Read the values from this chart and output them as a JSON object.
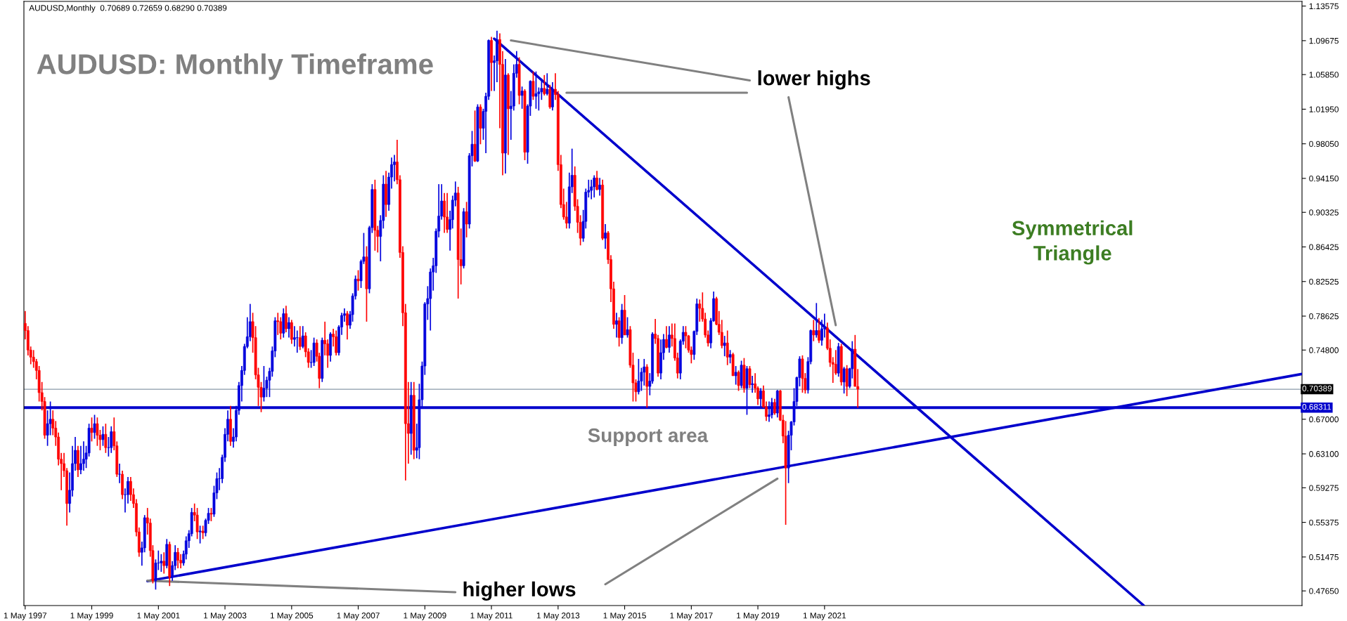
{
  "chart_data": {
    "type": "candlestick",
    "title": "AUDUSD: Monthly Timeframe",
    "subtitle": "AUDUSD,Monthly  0.70689 0.72659 0.68290 0.70389",
    "annotations": [
      "lower highs",
      "higher lows",
      "Support area",
      "Symmetrical\nTriangle"
    ],
    "colors": [
      "#ff0000",
      "#ff0000",
      "#ff0000",
      "#ff0000",
      "#ff0000",
      "#ff0000",
      "#ff0000",
      "#ff0000",
      "#0000dd",
      "#0000dd",
      "#ff0000",
      "#ff0000",
      "#ff0000",
      "#ff0000",
      "#ff0000",
      "#ff0000",
      "#0000dd",
      "#0000dd",
      "#0000dd",
      "#ff0000",
      "#0000dd",
      "#0000dd",
      "#0000dd",
      "#0000dd",
      "#ff0000",
      "#0000dd",
      "#ff0000",
      "#ff0000",
      "#0000dd",
      "#ff0000",
      "#0000dd",
      "#0000dd",
      "#ff0000",
      "#ff0000",
      "#0000dd",
      "#ff0000",
      "#0000dd",
      "#0000dd",
      "#ff0000",
      "#ff0000",
      "#ff0000",
      "#ff0000",
      "#0000dd",
      "#0000dd",
      "#ff0000",
      "#ff0000",
      "#ff0000",
      "#0000dd",
      "#0000dd",
      "#0000dd",
      "#ff0000",
      "#0000dd",
      "#ff0000",
      "#0000dd",
      "#0000dd",
      "#ff0000",
      "#ff0000",
      "#0000dd",
      "#0000dd",
      "#0000dd",
      "#0000dd",
      "#ff0000",
      "#ff0000",
      "#0000dd",
      "#ff0000",
      "#0000dd",
      "#0000dd",
      "#ff0000",
      "#0000dd",
      "#0000dd",
      "#0000dd",
      "#0000dd",
      "#0000dd",
      "#0000dd",
      "#ff0000",
      "#0000dd",
      "#0000dd",
      "#0000dd",
      "#0000dd",
      "#0000dd",
      "#0000dd",
      "#0000dd",
      "#ff0000",
      "#ff0000",
      "#ff0000",
      "#ff0000",
      "#0000dd",
      "#0000dd",
      "#0000dd",
      "#0000dd",
      "#0000dd",
      "#ff0000",
      "#ff0000",
      "#0000dd",
      "#ff0000",
      "#0000dd",
      "#ff0000",
      "#0000dd",
      "#0000dd",
      "#ff0000",
      "#0000dd",
      "#ff0000",
      "#ff0000",
      "#0000dd",
      "#0000dd",
      "#ff0000",
      "#ff0000",
      "#0000dd",
      "#ff0000",
      "#ff0000",
      "#0000dd",
      "#ff0000",
      "#ff0000",
      "#0000dd",
      "#0000dd",
      "#0000dd",
      "#ff0000",
      "#0000dd",
      "#0000dd",
      "#0000dd",
      "#ff0000",
      "#0000dd",
      "#0000dd",
      "#ff0000",
      "#0000dd",
      "#0000dd",
      "#ff0000",
      "#ff0000",
      "#0000dd",
      "#0000dd",
      "#ff0000",
      "#0000dd",
      "#0000dd",
      "#0000dd",
      "#ff0000",
      "#ff0000",
      "#ff0000",
      "#ff0000",
      "#ff0000",
      "#0000dd",
      "#ff0000",
      "#0000dd",
      "#0000dd",
      "#0000dd",
      "#0000dd",
      "#0000dd",
      "#0000dd",
      "#0000dd",
      "#0000dd",
      "#0000dd",
      "#0000dd",
      "#ff0000",
      "#ff0000",
      "#0000dd",
      "#0000dd",
      "#0000dd",
      "#ff0000",
      "#ff0000",
      "#0000dd",
      "#ff0000",
      "#0000dd",
      "#0000dd",
      "#ff0000",
      "#0000dd",
      "#ff0000",
      "#0000dd",
      "#0000dd",
      "#0000dd",
      "#ff0000",
      "#0000dd",
      "#0000dd",
      "#ff0000",
      "#ff0000",
      "#0000dd",
      "#ff0000",
      "#0000dd",
      "#0000dd",
      "#0000dd",
      "#ff0000",
      "#0000dd",
      "#ff0000",
      "#0000dd",
      "#0000dd",
      "#ff0000",
      "#0000dd",
      "#0000dd",
      "#0000dd",
      "#ff0000",
      "#0000dd",
      "#ff0000",
      "#0000dd",
      "#ff0000",
      "#ff0000",
      "#ff0000",
      "#ff0000",
      "#ff0000",
      "#0000dd",
      "#0000dd",
      "#ff0000",
      "#ff0000",
      "#ff0000",
      "#0000dd",
      "#0000dd",
      "#0000dd",
      "#0000dd",
      "#0000dd",
      "#ff0000",
      "#0000dd",
      "#ff0000",
      "#0000dd",
      "#ff0000",
      "#ff0000",
      "#ff0000",
      "#0000dd",
      "#ff0000",
      "#0000dd",
      "#ff0000",
      "#0000dd",
      "#ff0000",
      "#ff0000",
      "#ff0000",
      "#0000dd",
      "#0000dd",
      "#0000dd",
      "#ff0000",
      "#0000dd",
      "#0000dd",
      "#ff0000",
      "#ff0000",
      "#0000dd",
      "#0000dd",
      "#ff0000",
      "#0000dd",
      "#ff0000",
      "#ff0000",
      "#ff0000",
      "#0000dd",
      "#0000dd",
      "#ff0000",
      "#ff0000",
      "#ff0000",
      "#0000dd",
      "#0000dd",
      "#ff0000",
      "#ff0000",
      "#ff0000",
      "#ff0000",
      "#0000dd",
      "#0000dd",
      "#ff0000",
      "#ff0000",
      "#ff0000",
      "#0000dd",
      "#ff0000",
      "#0000dd",
      "#ff0000",
      "#0000dd",
      "#ff0000",
      "#0000dd",
      "#ff0000",
      "#0000dd",
      "#ff0000",
      "#0000dd",
      "#ff0000",
      "#ff0000",
      "#0000dd",
      "#ff0000",
      "#ff0000",
      "#0000dd",
      "#0000dd",
      "#ff0000",
      "#0000dd",
      "#ff0000",
      "#ff0000",
      "#ff0000",
      "#0000dd",
      "#0000dd",
      "#0000dd",
      "#0000dd",
      "#0000dd",
      "#ff0000",
      "#ff0000",
      "#0000dd",
      "#0000dd",
      "#ff0000",
      "#0000dd",
      "#ff0000",
      "#0000dd",
      "#0000dd",
      "#ff0000",
      "#ff0000",
      "#ff0000",
      "#ff0000",
      "#0000dd",
      "#ff0000",
      "#0000dd",
      "#ff0000",
      "#0000dd",
      "#0000dd",
      "#ff0000",
      "#ff0000"
    ],
    "xlim": [
      "1997-04-17",
      "2035-09-01"
    ],
    "ylim": [
      0.46,
      1.141
    ],
    "xticks": [
      {
        "value": "1997-05-01",
        "label": "1 May 1997"
      },
      {
        "value": "1999-05-01",
        "label": "1 May 1999"
      },
      {
        "value": "2001-05-01",
        "label": "1 May 2001"
      },
      {
        "value": "2003-05-01",
        "label": "1 May 2003"
      },
      {
        "value": "2005-05-01",
        "label": "1 May 2005"
      },
      {
        "value": "2007-05-01",
        "label": "1 May 2007"
      },
      {
        "value": "2009-05-01",
        "label": "1 May 2009"
      },
      {
        "value": "2011-05-01",
        "label": "1 May 2011"
      },
      {
        "value": "2013-05-01",
        "label": "1 May 2013"
      },
      {
        "value": "2015-05-01",
        "label": "1 May 2015"
      },
      {
        "value": "2017-05-01",
        "label": "1 May 2017"
      },
      {
        "value": "2019-05-01",
        "label": "1 May 2019"
      },
      {
        "value": "2021-05-01",
        "label": "1 May 2021"
      }
    ],
    "yticks": [
      {
        "value": 1.13575,
        "label": "1.13575"
      },
      {
        "value": 1.09675,
        "label": "1.09675"
      },
      {
        "value": 1.0585,
        "label": "1.05850"
      },
      {
        "value": 1.0195,
        "label": "1.01950"
      },
      {
        "value": 0.9805,
        "label": "0.98050"
      },
      {
        "value": 0.9415,
        "label": "0.94150"
      },
      {
        "value": 0.90325,
        "label": "0.90325"
      },
      {
        "value": 0.86425,
        "label": "0.86425"
      },
      {
        "value": 0.82525,
        "label": "0.82525"
      },
      {
        "value": 0.78625,
        "label": "0.78625"
      },
      {
        "value": 0.748,
        "label": "0.74800"
      },
      {
        "value": 0.67,
        "label": "0.67000"
      },
      {
        "value": 0.631,
        "label": "0.63100"
      },
      {
        "value": 0.59275,
        "label": "0.59275"
      },
      {
        "value": 0.55375,
        "label": "0.55375"
      },
      {
        "value": 0.51475,
        "label": "0.51475"
      },
      {
        "value": 0.4765,
        "label": "0.47650"
      }
    ],
    "ref_lines": [
      {
        "axis": "y",
        "value": 0.70389,
        "label": "0.70389",
        "color": "#8a9aa8"
      },
      {
        "axis": "y",
        "value": 0.68311,
        "label": "0.68311",
        "color": "#0000cc"
      }
    ],
    "x": [
      "1997-05",
      "1997-06",
      "1997-07",
      "1997-08",
      "1997-09",
      "1997-10",
      "1997-11",
      "1997-12",
      "1998-01",
      "1998-02",
      "1998-03",
      "1998-04",
      "1998-05",
      "1998-06",
      "1998-07",
      "1998-08",
      "1998-09",
      "1998-10",
      "1998-11",
      "1998-12",
      "1999-01",
      "1999-02",
      "1999-03",
      "1999-04",
      "1999-05",
      "1999-06",
      "1999-07",
      "1999-08",
      "1999-09",
      "1999-10",
      "1999-11",
      "1999-12",
      "2000-01",
      "2000-02",
      "2000-03",
      "2000-04",
      "2000-05",
      "2000-06",
      "2000-07",
      "2000-08",
      "2000-09",
      "2000-10",
      "2000-11",
      "2000-12",
      "2001-01",
      "2001-02",
      "2001-03",
      "2001-04",
      "2001-05",
      "2001-06",
      "2001-07",
      "2001-08",
      "2001-09",
      "2001-10",
      "2001-11",
      "2001-12",
      "2002-01",
      "2002-02",
      "2002-03",
      "2002-04",
      "2002-05",
      "2002-06",
      "2002-07",
      "2002-08",
      "2002-09",
      "2002-10",
      "2002-11",
      "2002-12",
      "2003-01",
      "2003-02",
      "2003-03",
      "2003-04",
      "2003-05",
      "2003-06",
      "2003-07",
      "2003-08",
      "2003-09",
      "2003-10",
      "2003-11",
      "2003-12",
      "2004-01",
      "2004-02",
      "2004-03",
      "2004-04",
      "2004-05",
      "2004-06",
      "2004-07",
      "2004-08",
      "2004-09",
      "2004-10",
      "2004-11",
      "2004-12",
      "2005-01",
      "2005-02",
      "2005-03",
      "2005-04",
      "2005-05",
      "2005-06",
      "2005-07",
      "2005-08",
      "2005-09",
      "2005-10",
      "2005-11",
      "2005-12",
      "2006-01",
      "2006-02",
      "2006-03",
      "2006-04",
      "2006-05",
      "2006-06",
      "2006-07",
      "2006-08",
      "2006-09",
      "2006-10",
      "2006-11",
      "2006-12",
      "2007-01",
      "2007-02",
      "2007-03",
      "2007-04",
      "2007-05",
      "2007-06",
      "2007-07",
      "2007-08",
      "2007-09",
      "2007-10",
      "2007-11",
      "2007-12",
      "2008-01",
      "2008-02",
      "2008-03",
      "2008-04",
      "2008-05",
      "2008-06",
      "2008-07",
      "2008-08",
      "2008-09",
      "2008-10",
      "2008-11",
      "2008-12",
      "2009-01",
      "2009-02",
      "2009-03",
      "2009-04",
      "2009-05",
      "2009-06",
      "2009-07",
      "2009-08",
      "2009-09",
      "2009-10",
      "2009-11",
      "2009-12",
      "2010-01",
      "2010-02",
      "2010-03",
      "2010-04",
      "2010-05",
      "2010-06",
      "2010-07",
      "2010-08",
      "2010-09",
      "2010-10",
      "2010-11",
      "2010-12",
      "2011-01",
      "2011-02",
      "2011-03",
      "2011-04",
      "2011-05",
      "2011-06",
      "2011-07",
      "2011-08",
      "2011-09",
      "2011-10",
      "2011-11",
      "2011-12",
      "2012-01",
      "2012-02",
      "2012-03",
      "2012-04",
      "2012-05",
      "2012-06",
      "2012-07",
      "2012-08",
      "2012-09",
      "2012-10",
      "2012-11",
      "2012-12",
      "2013-01",
      "2013-02",
      "2013-03",
      "2013-04",
      "2013-05",
      "2013-06",
      "2013-07",
      "2013-08",
      "2013-09",
      "2013-10",
      "2013-11",
      "2013-12",
      "2014-01",
      "2014-02",
      "2014-03",
      "2014-04",
      "2014-05",
      "2014-06",
      "2014-07",
      "2014-08",
      "2014-09",
      "2014-10",
      "2014-11",
      "2014-12",
      "2015-01",
      "2015-02",
      "2015-03",
      "2015-04",
      "2015-05",
      "2015-06",
      "2015-07",
      "2015-08",
      "2015-09",
      "2015-10",
      "2015-11",
      "2015-12",
      "2016-01",
      "2016-02",
      "2016-03",
      "2016-04",
      "2016-05",
      "2016-06",
      "2016-07",
      "2016-08",
      "2016-09",
      "2016-10",
      "2016-11",
      "2016-12",
      "2017-01",
      "2017-02",
      "2017-03",
      "2017-04",
      "2017-05",
      "2017-06",
      "2017-07",
      "2017-08",
      "2017-09",
      "2017-10",
      "2017-11",
      "2017-12",
      "2018-01",
      "2018-02",
      "2018-03",
      "2018-04",
      "2018-05",
      "2018-06",
      "2018-07",
      "2018-08",
      "2018-09",
      "2018-10",
      "2018-11",
      "2018-12",
      "2019-01",
      "2019-02",
      "2019-03",
      "2019-04",
      "2019-05",
      "2019-06",
      "2019-07",
      "2019-08",
      "2019-09",
      "2019-10",
      "2019-11",
      "2019-12",
      "2020-01",
      "2020-02",
      "2020-03",
      "2020-04",
      "2020-05",
      "2020-06",
      "2020-07",
      "2020-08",
      "2020-09",
      "2020-10",
      "2020-11",
      "2020-12",
      "2021-01",
      "2021-02",
      "2021-03",
      "2021-04",
      "2021-05",
      "2021-06",
      "2021-07",
      "2021-08",
      "2021-09",
      "2021-10",
      "2021-11",
      "2021-12",
      "2022-01",
      "2022-02",
      "2022-03",
      "2022-04",
      "2022-05"
    ],
    "ohlc": [
      [
        0.778,
        0.792,
        0.76,
        0.77
      ],
      [
        0.77,
        0.775,
        0.742,
        0.748
      ],
      [
        0.748,
        0.752,
        0.732,
        0.74
      ],
      [
        0.74,
        0.748,
        0.728,
        0.735
      ],
      [
        0.735,
        0.738,
        0.715,
        0.725
      ],
      [
        0.725,
        0.73,
        0.69,
        0.7
      ],
      [
        0.7,
        0.712,
        0.68,
        0.69
      ],
      [
        0.69,
        0.695,
        0.648,
        0.652
      ],
      [
        0.652,
        0.68,
        0.64,
        0.665
      ],
      [
        0.665,
        0.69,
        0.652,
        0.67
      ],
      [
        0.67,
        0.68,
        0.652,
        0.66
      ],
      [
        0.66,
        0.668,
        0.64,
        0.65
      ],
      [
        0.65,
        0.655,
        0.618,
        0.625
      ],
      [
        0.625,
        0.632,
        0.59,
        0.62
      ],
      [
        0.62,
        0.632,
        0.605,
        0.612
      ],
      [
        0.612,
        0.615,
        0.55,
        0.575
      ],
      [
        0.575,
        0.61,
        0.565,
        0.59
      ],
      [
        0.59,
        0.64,
        0.583,
        0.62
      ],
      [
        0.62,
        0.65,
        0.612,
        0.635
      ],
      [
        0.635,
        0.64,
        0.605,
        0.613
      ],
      [
        0.613,
        0.64,
        0.608,
        0.62
      ],
      [
        0.62,
        0.645,
        0.612,
        0.625
      ],
      [
        0.625,
        0.64,
        0.615,
        0.632
      ],
      [
        0.632,
        0.665,
        0.628,
        0.66
      ],
      [
        0.66,
        0.672,
        0.645,
        0.655
      ],
      [
        0.655,
        0.675,
        0.648,
        0.665
      ],
      [
        0.665,
        0.672,
        0.64,
        0.652
      ],
      [
        0.652,
        0.658,
        0.635,
        0.647
      ],
      [
        0.647,
        0.662,
        0.64,
        0.653
      ],
      [
        0.653,
        0.665,
        0.632,
        0.638
      ],
      [
        0.638,
        0.65,
        0.628,
        0.638
      ],
      [
        0.638,
        0.662,
        0.632,
        0.656
      ],
      [
        0.656,
        0.672,
        0.635,
        0.64
      ],
      [
        0.64,
        0.645,
        0.605,
        0.608
      ],
      [
        0.608,
        0.62,
        0.598,
        0.608
      ],
      [
        0.608,
        0.612,
        0.58,
        0.585
      ],
      [
        0.585,
        0.592,
        0.565,
        0.585
      ],
      [
        0.585,
        0.605,
        0.575,
        0.6
      ],
      [
        0.6,
        0.605,
        0.578,
        0.585
      ],
      [
        0.585,
        0.592,
        0.57,
        0.575
      ],
      [
        0.575,
        0.58,
        0.538,
        0.543
      ],
      [
        0.543,
        0.548,
        0.515,
        0.52
      ],
      [
        0.52,
        0.532,
        0.505,
        0.525
      ],
      [
        0.525,
        0.562,
        0.52,
        0.559
      ],
      [
        0.559,
        0.57,
        0.54,
        0.553
      ],
      [
        0.553,
        0.558,
        0.515,
        0.522
      ],
      [
        0.522,
        0.528,
        0.485,
        0.488
      ],
      [
        0.488,
        0.512,
        0.478,
        0.508
      ],
      [
        0.508,
        0.522,
        0.5,
        0.508
      ],
      [
        0.508,
        0.518,
        0.498,
        0.51
      ],
      [
        0.51,
        0.52,
        0.496,
        0.505
      ],
      [
        0.505,
        0.535,
        0.502,
        0.529
      ],
      [
        0.529,
        0.532,
        0.482,
        0.492
      ],
      [
        0.492,
        0.51,
        0.488,
        0.505
      ],
      [
        0.505,
        0.528,
        0.5,
        0.52
      ],
      [
        0.52,
        0.525,
        0.502,
        0.511
      ],
      [
        0.511,
        0.518,
        0.502,
        0.508
      ],
      [
        0.508,
        0.522,
        0.505,
        0.518
      ],
      [
        0.518,
        0.538,
        0.512,
        0.533
      ],
      [
        0.533,
        0.545,
        0.525,
        0.541
      ],
      [
        0.541,
        0.57,
        0.538,
        0.565
      ],
      [
        0.565,
        0.575,
        0.555,
        0.562
      ],
      [
        0.562,
        0.57,
        0.535,
        0.543
      ],
      [
        0.543,
        0.55,
        0.53,
        0.544
      ],
      [
        0.544,
        0.55,
        0.535,
        0.542
      ],
      [
        0.542,
        0.558,
        0.538,
        0.556
      ],
      [
        0.556,
        0.57,
        0.552,
        0.564
      ],
      [
        0.564,
        0.57,
        0.555,
        0.563
      ],
      [
        0.563,
        0.595,
        0.56,
        0.587
      ],
      [
        0.587,
        0.61,
        0.58,
        0.603
      ],
      [
        0.603,
        0.615,
        0.59,
        0.603
      ],
      [
        0.603,
        0.63,
        0.598,
        0.627
      ],
      [
        0.627,
        0.66,
        0.622,
        0.653
      ],
      [
        0.653,
        0.68,
        0.645,
        0.67
      ],
      [
        0.67,
        0.685,
        0.64,
        0.645
      ],
      [
        0.645,
        0.66,
        0.638,
        0.65
      ],
      [
        0.65,
        0.685,
        0.645,
        0.68
      ],
      [
        0.68,
        0.712,
        0.675,
        0.708
      ],
      [
        0.708,
        0.73,
        0.69,
        0.725
      ],
      [
        0.725,
        0.755,
        0.72,
        0.752
      ],
      [
        0.752,
        0.785,
        0.75,
        0.763
      ],
      [
        0.763,
        0.8,
        0.758,
        0.78
      ],
      [
        0.78,
        0.79,
        0.745,
        0.762
      ],
      [
        0.762,
        0.775,
        0.715,
        0.72
      ],
      [
        0.72,
        0.728,
        0.685,
        0.706
      ],
      [
        0.706,
        0.712,
        0.678,
        0.695
      ],
      [
        0.695,
        0.73,
        0.69,
        0.705
      ],
      [
        0.705,
        0.718,
        0.695,
        0.714
      ],
      [
        0.714,
        0.728,
        0.695,
        0.724
      ],
      [
        0.724,
        0.752,
        0.718,
        0.747
      ],
      [
        0.747,
        0.785,
        0.74,
        0.781
      ],
      [
        0.781,
        0.79,
        0.765,
        0.78
      ],
      [
        0.78,
        0.785,
        0.76,
        0.767
      ],
      [
        0.767,
        0.795,
        0.762,
        0.789
      ],
      [
        0.789,
        0.798,
        0.768,
        0.772
      ],
      [
        0.772,
        0.785,
        0.762,
        0.779
      ],
      [
        0.779,
        0.782,
        0.755,
        0.76
      ],
      [
        0.76,
        0.775,
        0.752,
        0.762
      ],
      [
        0.762,
        0.77,
        0.745,
        0.762
      ],
      [
        0.762,
        0.775,
        0.748,
        0.752
      ],
      [
        0.752,
        0.775,
        0.75,
        0.764
      ],
      [
        0.764,
        0.768,
        0.74,
        0.746
      ],
      [
        0.746,
        0.75,
        0.728,
        0.734
      ],
      [
        0.734,
        0.748,
        0.728,
        0.734
      ],
      [
        0.734,
        0.762,
        0.73,
        0.756
      ],
      [
        0.756,
        0.76,
        0.735,
        0.741
      ],
      [
        0.741,
        0.745,
        0.705,
        0.716
      ],
      [
        0.716,
        0.762,
        0.712,
        0.759
      ],
      [
        0.759,
        0.78,
        0.742,
        0.755
      ],
      [
        0.755,
        0.76,
        0.728,
        0.742
      ],
      [
        0.742,
        0.768,
        0.735,
        0.766
      ],
      [
        0.766,
        0.772,
        0.752,
        0.763
      ],
      [
        0.763,
        0.77,
        0.742,
        0.745
      ],
      [
        0.745,
        0.776,
        0.742,
        0.774
      ],
      [
        0.774,
        0.79,
        0.765,
        0.787
      ],
      [
        0.787,
        0.795,
        0.78,
        0.789
      ],
      [
        0.789,
        0.792,
        0.76,
        0.776
      ],
      [
        0.776,
        0.792,
        0.772,
        0.788
      ],
      [
        0.788,
        0.812,
        0.78,
        0.809
      ],
      [
        0.809,
        0.832,
        0.805,
        0.828
      ],
      [
        0.828,
        0.838,
        0.815,
        0.826
      ],
      [
        0.826,
        0.85,
        0.818,
        0.848
      ],
      [
        0.848,
        0.88,
        0.845,
        0.853
      ],
      [
        0.853,
        0.865,
        0.78,
        0.817
      ],
      [
        0.817,
        0.888,
        0.812,
        0.886
      ],
      [
        0.886,
        0.935,
        0.88,
        0.929
      ],
      [
        0.929,
        0.94,
        0.86,
        0.883
      ],
      [
        0.883,
        0.888,
        0.858,
        0.876
      ],
      [
        0.876,
        0.9,
        0.848,
        0.894
      ],
      [
        0.894,
        0.945,
        0.885,
        0.935
      ],
      [
        0.935,
        0.95,
        0.898,
        0.912
      ],
      [
        0.912,
        0.948,
        0.905,
        0.943
      ],
      [
        0.943,
        0.965,
        0.93,
        0.957
      ],
      [
        0.957,
        0.968,
        0.938,
        0.96
      ],
      [
        0.96,
        0.985,
        0.935,
        0.94
      ],
      [
        0.94,
        0.945,
        0.852,
        0.858
      ],
      [
        0.858,
        0.865,
        0.775,
        0.79
      ],
      [
        0.79,
        0.8,
        0.601,
        0.665
      ],
      [
        0.665,
        0.712,
        0.62,
        0.654
      ],
      [
        0.654,
        0.712,
        0.63,
        0.697
      ],
      [
        0.697,
        0.712,
        0.625,
        0.635
      ],
      [
        0.635,
        0.665,
        0.626,
        0.638
      ],
      [
        0.638,
        0.71,
        0.625,
        0.692
      ],
      [
        0.692,
        0.735,
        0.682,
        0.73
      ],
      [
        0.73,
        0.802,
        0.72,
        0.8
      ],
      [
        0.8,
        0.82,
        0.782,
        0.806
      ],
      [
        0.806,
        0.84,
        0.77,
        0.836
      ],
      [
        0.836,
        0.852,
        0.815,
        0.843
      ],
      [
        0.843,
        0.885,
        0.835,
        0.882
      ],
      [
        0.882,
        0.935,
        0.875,
        0.899
      ],
      [
        0.899,
        0.935,
        0.895,
        0.916
      ],
      [
        0.916,
        0.925,
        0.88,
        0.898
      ],
      [
        0.898,
        0.925,
        0.88,
        0.884
      ],
      [
        0.884,
        0.905,
        0.86,
        0.895
      ],
      [
        0.895,
        0.922,
        0.885,
        0.917
      ],
      [
        0.917,
        0.938,
        0.91,
        0.925
      ],
      [
        0.925,
        0.932,
        0.806,
        0.85
      ],
      [
        0.85,
        0.885,
        0.822,
        0.843
      ],
      [
        0.843,
        0.908,
        0.84,
        0.904
      ],
      [
        0.904,
        0.915,
        0.875,
        0.89
      ],
      [
        0.89,
        0.97,
        0.885,
        0.967
      ],
      [
        0.967,
        0.995,
        0.955,
        0.98
      ],
      [
        0.98,
        1.018,
        0.96,
        0.961
      ],
      [
        0.961,
        1.025,
        0.96,
        1.022
      ],
      [
        1.022,
        1.025,
        0.98,
        0.998
      ],
      [
        0.998,
        1.02,
        0.985,
        1.017
      ],
      [
        1.017,
        1.038,
        0.97,
        1.034
      ],
      [
        1.034,
        1.098,
        1.03,
        1.097
      ],
      [
        1.097,
        1.101,
        1.04,
        1.072
      ],
      [
        1.072,
        1.08,
        1.04,
        1.074
      ],
      [
        1.074,
        1.108,
        1.05,
        1.098
      ],
      [
        1.098,
        1.105,
        0.998,
        1.07
      ],
      [
        1.07,
        1.085,
        0.945,
        0.97
      ],
      [
        0.97,
        1.076,
        0.947,
        1.058
      ],
      [
        1.058,
        1.06,
        0.968,
        1.02
      ],
      [
        1.02,
        1.04,
        0.985,
        1.023
      ],
      [
        1.023,
        1.07,
        1.018,
        1.06
      ],
      [
        1.06,
        1.085,
        1.055,
        1.07
      ],
      [
        1.07,
        1.078,
        1.025,
        1.035
      ],
      [
        1.035,
        1.045,
        1.02,
        1.04
      ],
      [
        1.04,
        1.042,
        0.962,
        0.971
      ],
      [
        0.971,
        1.025,
        0.958,
        1.023
      ],
      [
        1.023,
        1.052,
        1.012,
        1.051
      ],
      [
        1.051,
        1.062,
        1.03,
        1.034
      ],
      [
        1.034,
        1.062,
        1.02,
        1.037
      ],
      [
        1.037,
        1.044,
        1.018,
        1.039
      ],
      [
        1.039,
        1.054,
        1.03,
        1.043
      ],
      [
        1.043,
        1.058,
        1.035,
        1.037
      ],
      [
        1.037,
        1.06,
        1.035,
        1.042
      ],
      [
        1.042,
        1.047,
        1.02,
        1.022
      ],
      [
        1.022,
        1.05,
        1.018,
        1.042
      ],
      [
        1.042,
        1.06,
        1.03,
        1.036
      ],
      [
        1.036,
        1.04,
        0.95,
        0.957
      ],
      [
        0.957,
        0.968,
        0.908,
        0.912
      ],
      [
        0.912,
        0.93,
        0.895,
        0.898
      ],
      [
        0.898,
        0.915,
        0.885,
        0.891
      ],
      [
        0.891,
        0.948,
        0.885,
        0.932
      ],
      [
        0.932,
        0.975,
        0.925,
        0.945
      ],
      [
        0.945,
        0.955,
        0.905,
        0.91
      ],
      [
        0.91,
        0.918,
        0.88,
        0.892
      ],
      [
        0.892,
        0.9,
        0.866,
        0.874
      ],
      [
        0.874,
        0.906,
        0.87,
        0.893
      ],
      [
        0.893,
        0.93,
        0.885,
        0.926
      ],
      [
        0.926,
        0.94,
        0.92,
        0.928
      ],
      [
        0.928,
        0.94,
        0.918,
        0.932
      ],
      [
        0.932,
        0.945,
        0.92,
        0.942
      ],
      [
        0.942,
        0.95,
        0.928,
        0.929
      ],
      [
        0.929,
        0.942,
        0.922,
        0.934
      ],
      [
        0.934,
        0.94,
        0.872,
        0.874
      ],
      [
        0.874,
        0.89,
        0.862,
        0.88
      ],
      [
        0.88,
        0.882,
        0.845,
        0.85
      ],
      [
        0.85,
        0.855,
        0.802,
        0.817
      ],
      [
        0.817,
        0.825,
        0.772,
        0.777
      ],
      [
        0.777,
        0.79,
        0.762,
        0.781
      ],
      [
        0.781,
        0.785,
        0.752,
        0.762
      ],
      [
        0.762,
        0.8,
        0.755,
        0.793
      ],
      [
        0.793,
        0.81,
        0.765,
        0.765
      ],
      [
        0.765,
        0.785,
        0.762,
        0.771
      ],
      [
        0.771,
        0.775,
        0.728,
        0.731
      ],
      [
        0.731,
        0.745,
        0.69,
        0.711
      ],
      [
        0.711,
        0.715,
        0.69,
        0.701
      ],
      [
        0.701,
        0.738,
        0.698,
        0.713
      ],
      [
        0.713,
        0.728,
        0.702,
        0.723
      ],
      [
        0.723,
        0.738,
        0.708,
        0.729
      ],
      [
        0.729,
        0.732,
        0.683,
        0.707
      ],
      [
        0.707,
        0.722,
        0.697,
        0.713
      ],
      [
        0.713,
        0.768,
        0.71,
        0.766
      ],
      [
        0.766,
        0.783,
        0.755,
        0.761
      ],
      [
        0.761,
        0.765,
        0.718,
        0.722
      ],
      [
        0.722,
        0.76,
        0.715,
        0.745
      ],
      [
        0.745,
        0.766,
        0.737,
        0.76
      ],
      [
        0.76,
        0.775,
        0.75,
        0.751
      ],
      [
        0.751,
        0.775,
        0.745,
        0.765
      ],
      [
        0.765,
        0.778,
        0.752,
        0.761
      ],
      [
        0.761,
        0.778,
        0.736,
        0.739
      ],
      [
        0.739,
        0.745,
        0.716,
        0.722
      ],
      [
        0.722,
        0.76,
        0.715,
        0.758
      ],
      [
        0.758,
        0.775,
        0.754,
        0.768
      ],
      [
        0.768,
        0.775,
        0.75,
        0.764
      ],
      [
        0.764,
        0.765,
        0.745,
        0.748
      ],
      [
        0.748,
        0.752,
        0.733,
        0.743
      ],
      [
        0.743,
        0.77,
        0.737,
        0.769
      ],
      [
        0.769,
        0.806,
        0.765,
        0.8
      ],
      [
        0.8,
        0.805,
        0.78,
        0.795
      ],
      [
        0.795,
        0.813,
        0.78,
        0.783
      ],
      [
        0.783,
        0.79,
        0.762,
        0.765
      ],
      [
        0.765,
        0.77,
        0.752,
        0.756
      ],
      [
        0.756,
        0.784,
        0.75,
        0.781
      ],
      [
        0.781,
        0.814,
        0.78,
        0.806
      ],
      [
        0.806,
        0.808,
        0.776,
        0.777
      ],
      [
        0.777,
        0.792,
        0.765,
        0.768
      ],
      [
        0.768,
        0.782,
        0.75,
        0.753
      ],
      [
        0.753,
        0.764,
        0.741,
        0.756
      ],
      [
        0.756,
        0.77,
        0.731,
        0.74
      ],
      [
        0.74,
        0.748,
        0.733,
        0.743
      ],
      [
        0.743,
        0.745,
        0.719,
        0.719
      ],
      [
        0.719,
        0.73,
        0.709,
        0.723
      ],
      [
        0.723,
        0.725,
        0.702,
        0.708
      ],
      [
        0.708,
        0.736,
        0.705,
        0.731
      ],
      [
        0.731,
        0.739,
        0.7,
        0.705
      ],
      [
        0.705,
        0.73,
        0.675,
        0.727
      ],
      [
        0.727,
        0.73,
        0.705,
        0.709
      ],
      [
        0.709,
        0.719,
        0.7,
        0.71
      ],
      [
        0.71,
        0.722,
        0.7,
        0.705
      ],
      [
        0.705,
        0.707,
        0.686,
        0.693
      ],
      [
        0.693,
        0.705,
        0.683,
        0.702
      ],
      [
        0.702,
        0.708,
        0.683,
        0.684
      ],
      [
        0.684,
        0.69,
        0.668,
        0.673
      ],
      [
        0.673,
        0.69,
        0.667,
        0.675
      ],
      [
        0.675,
        0.694,
        0.671,
        0.689
      ],
      [
        0.689,
        0.693,
        0.675,
        0.677
      ],
      [
        0.677,
        0.703,
        0.672,
        0.702
      ],
      [
        0.702,
        0.703,
        0.668,
        0.669
      ],
      [
        0.669,
        0.675,
        0.643,
        0.651
      ],
      [
        0.651,
        0.668,
        0.551,
        0.615
      ],
      [
        0.615,
        0.657,
        0.598,
        0.652
      ],
      [
        0.652,
        0.668,
        0.635,
        0.667
      ],
      [
        0.667,
        0.705,
        0.663,
        0.69
      ],
      [
        0.69,
        0.718,
        0.685,
        0.717
      ],
      [
        0.717,
        0.741,
        0.707,
        0.738
      ],
      [
        0.738,
        0.742,
        0.7,
        0.716
      ],
      [
        0.716,
        0.722,
        0.699,
        0.703
      ],
      [
        0.703,
        0.74,
        0.699,
        0.735
      ],
      [
        0.735,
        0.771,
        0.732,
        0.77
      ],
      [
        0.77,
        0.782,
        0.758,
        0.765
      ],
      [
        0.765,
        0.801,
        0.762,
        0.77
      ],
      [
        0.77,
        0.784,
        0.756,
        0.759
      ],
      [
        0.759,
        0.782,
        0.753,
        0.772
      ],
      [
        0.772,
        0.789,
        0.762,
        0.773
      ],
      [
        0.773,
        0.779,
        0.748,
        0.75
      ],
      [
        0.75,
        0.76,
        0.729,
        0.734
      ],
      [
        0.734,
        0.74,
        0.711,
        0.732
      ],
      [
        0.732,
        0.748,
        0.72,
        0.722
      ],
      [
        0.722,
        0.756,
        0.718,
        0.752
      ],
      [
        0.752,
        0.755,
        0.708,
        0.712
      ],
      [
        0.712,
        0.729,
        0.699,
        0.727
      ],
      [
        0.727,
        0.731,
        0.696,
        0.707
      ],
      [
        0.707,
        0.728,
        0.705,
        0.727
      ],
      [
        0.727,
        0.758,
        0.716,
        0.749
      ],
      [
        0.749,
        0.765,
        0.707,
        0.707
      ],
      [
        0.70689,
        0.72659,
        0.6829,
        0.70389
      ]
    ],
    "series": [
      {
        "type": "line",
        "color": "#0000cc",
        "x": [
          "2011-06",
          "2030-12"
        ],
        "values": [
          1.099,
          0.46
        ]
      },
      {
        "type": "line",
        "color": "#0000cc",
        "x": [
          "2001-01",
          "2035-09"
        ],
        "values": [
          0.4875,
          0.721
        ]
      },
      {
        "type": "line",
        "color": "#808080",
        "x": [
          "2011-12",
          "2019-02"
        ],
        "values": [
          1.097,
          1.052
        ]
      },
      {
        "type": "line",
        "color": "#808080",
        "x": [
          "2013-08",
          "2019-01"
        ],
        "values": [
          1.038,
          1.038
        ]
      },
      {
        "type": "line",
        "color": "#808080",
        "x": [
          "2020-04",
          "2021-09"
        ],
        "values": [
          1.033,
          0.776
        ]
      },
      {
        "type": "line",
        "color": "#808080",
        "x": [
          "2001-01",
          "2010-04"
        ],
        "values": [
          0.488,
          0.475
        ]
      },
      {
        "type": "line",
        "color": "#808080",
        "x": [
          "2014-10",
          "2019-12"
        ],
        "values": [
          0.484,
          0.603
        ]
      }
    ]
  }
}
